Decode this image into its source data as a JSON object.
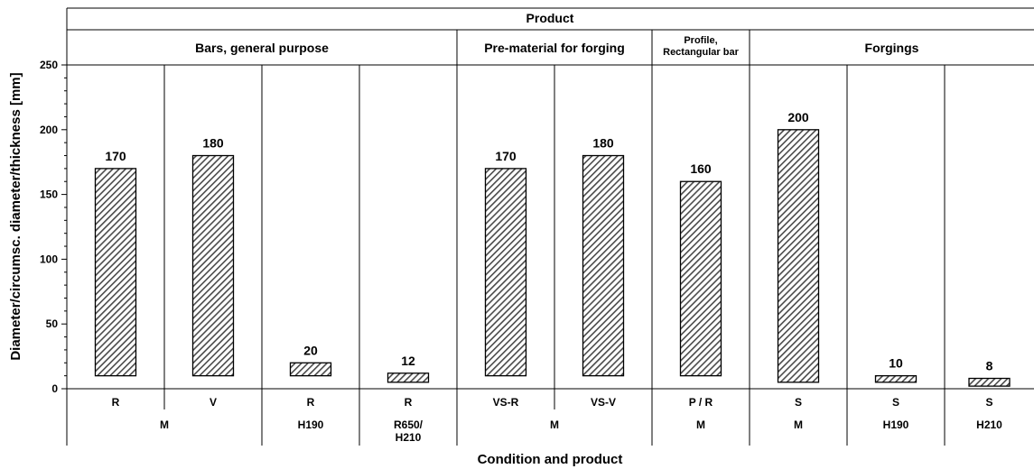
{
  "chart_data": {
    "type": "bar",
    "top_header": "Product",
    "groups": [
      {
        "label": "Bars, general purpose"
      },
      {
        "label": "Pre-material for forging"
      },
      {
        "label": "Profile,\nRectangular bar"
      },
      {
        "label": "Forgings"
      }
    ],
    "bars": [
      {
        "product": "R",
        "low": 10,
        "value": 170,
        "value_label": "170"
      },
      {
        "product": "V",
        "low": 10,
        "value": 180,
        "value_label": "180"
      },
      {
        "product": "R",
        "low": 10,
        "value": 20,
        "value_label": "20"
      },
      {
        "product": "R",
        "low": 5,
        "value": 12,
        "value_label": "12"
      },
      {
        "product": "VS-R",
        "low": 10,
        "value": 170,
        "value_label": "170"
      },
      {
        "product": "VS-V",
        "low": 10,
        "value": 180,
        "value_label": "180"
      },
      {
        "product": "P / R",
        "low": 10,
        "value": 160,
        "value_label": "160"
      },
      {
        "product": "S",
        "low": 5,
        "value": 200,
        "value_label": "200"
      },
      {
        "product": "S",
        "low": 5,
        "value": 10,
        "value_label": "10"
      },
      {
        "product": "S",
        "low": 2,
        "value": 8,
        "value_label": "8"
      }
    ],
    "conditions": [
      {
        "label": "M"
      },
      {
        "label": "H190"
      },
      {
        "label": "R650/\nH210"
      },
      {
        "label": "M"
      },
      {
        "label": "M"
      },
      {
        "label": "M"
      },
      {
        "label": "H190"
      },
      {
        "label": "H210"
      }
    ],
    "ylabel": "Diameter/circumsc. diameter/thickness [mm]",
    "xlabel": "Condition and product",
    "ylim": [
      0,
      250
    ],
    "yticks": [
      0,
      50,
      100,
      150,
      200,
      250
    ],
    "grid": false,
    "bar_fill": "hatched",
    "colors": {
      "bar_fill": "#4a4a4a",
      "axis": "#000000",
      "background": "#ffffff"
    }
  }
}
